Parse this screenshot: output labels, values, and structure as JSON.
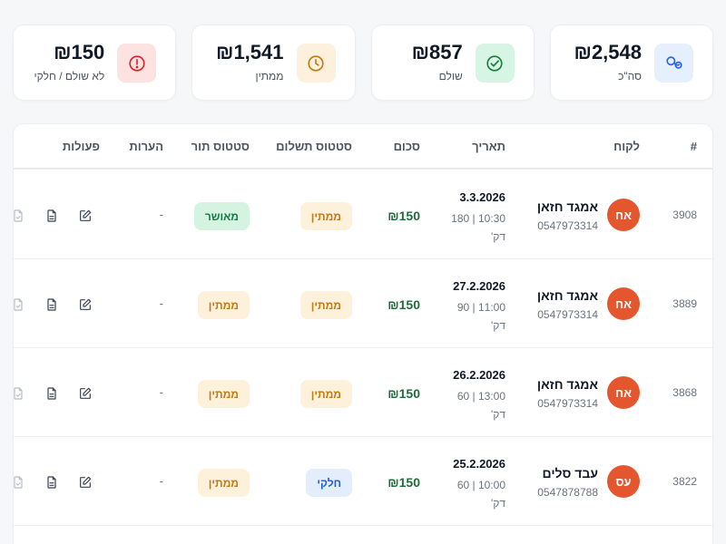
{
  "stats": [
    {
      "id": "total",
      "value": "₪2,548",
      "label": "סה\"כ",
      "icon": "coins-icon",
      "bg": "#e6effc",
      "fg": "#2563eb"
    },
    {
      "id": "paid",
      "value": "₪857",
      "label": "שולם",
      "icon": "check-circle-icon",
      "bg": "#d8f4e4",
      "fg": "#15803d"
    },
    {
      "id": "pending",
      "value": "₪1,541",
      "label": "ממתין",
      "icon": "clock-icon",
      "bg": "#fdf0dc",
      "fg": "#c27a12"
    },
    {
      "id": "unpaid",
      "value": "₪150",
      "label": "לא שולם / חלקי",
      "icon": "alert-circle-icon",
      "bg": "#fde2e2",
      "fg": "#dc2626"
    }
  ],
  "table": {
    "headers": {
      "id": "#",
      "customer": "לקוח",
      "date": "תאריך",
      "amount": "סכום",
      "payment_status": "סטטוס תשלום",
      "appointment_status": "סטטוס תור",
      "notes": "הערות",
      "actions": "פעולות"
    },
    "rows": [
      {
        "id": "3908",
        "initials": "אח",
        "name": "אמגד חזאן",
        "phone": "0547973314",
        "date": "3.3.2026",
        "time_duration": "10:30 | 180 דק'",
        "amount": "₪150",
        "payment_status": "ממתין",
        "payment_kind": "pending",
        "appointment_status": "מאושר",
        "appointment_kind": "approved",
        "notes": "-"
      },
      {
        "id": "3889",
        "initials": "אח",
        "name": "אמגד חזאן",
        "phone": "0547973314",
        "date": "27.2.2026",
        "time_duration": "11:00 | 90 דק'",
        "amount": "₪150",
        "payment_status": "ממתין",
        "payment_kind": "pending",
        "appointment_status": "ממתין",
        "appointment_kind": "pending",
        "notes": "-"
      },
      {
        "id": "3868",
        "initials": "אח",
        "name": "אמגד חזאן",
        "phone": "0547973314",
        "date": "26.2.2026",
        "time_duration": "13:00 | 60 דק'",
        "amount": "₪150",
        "payment_status": "ממתין",
        "payment_kind": "pending",
        "appointment_status": "ממתין",
        "appointment_kind": "pending",
        "notes": "-"
      },
      {
        "id": "3822",
        "initials": "עס",
        "name": "עבד סלים",
        "phone": "0547878788",
        "date": "25.2.2026",
        "time_duration": "10:00 | 60 דק'",
        "amount": "₪150",
        "payment_status": "חלקי",
        "payment_kind": "partial",
        "appointment_status": "ממתין",
        "appointment_kind": "pending",
        "notes": "-"
      }
    ]
  },
  "row_actions": [
    "edit-icon",
    "document-icon",
    "file-check-icon"
  ]
}
